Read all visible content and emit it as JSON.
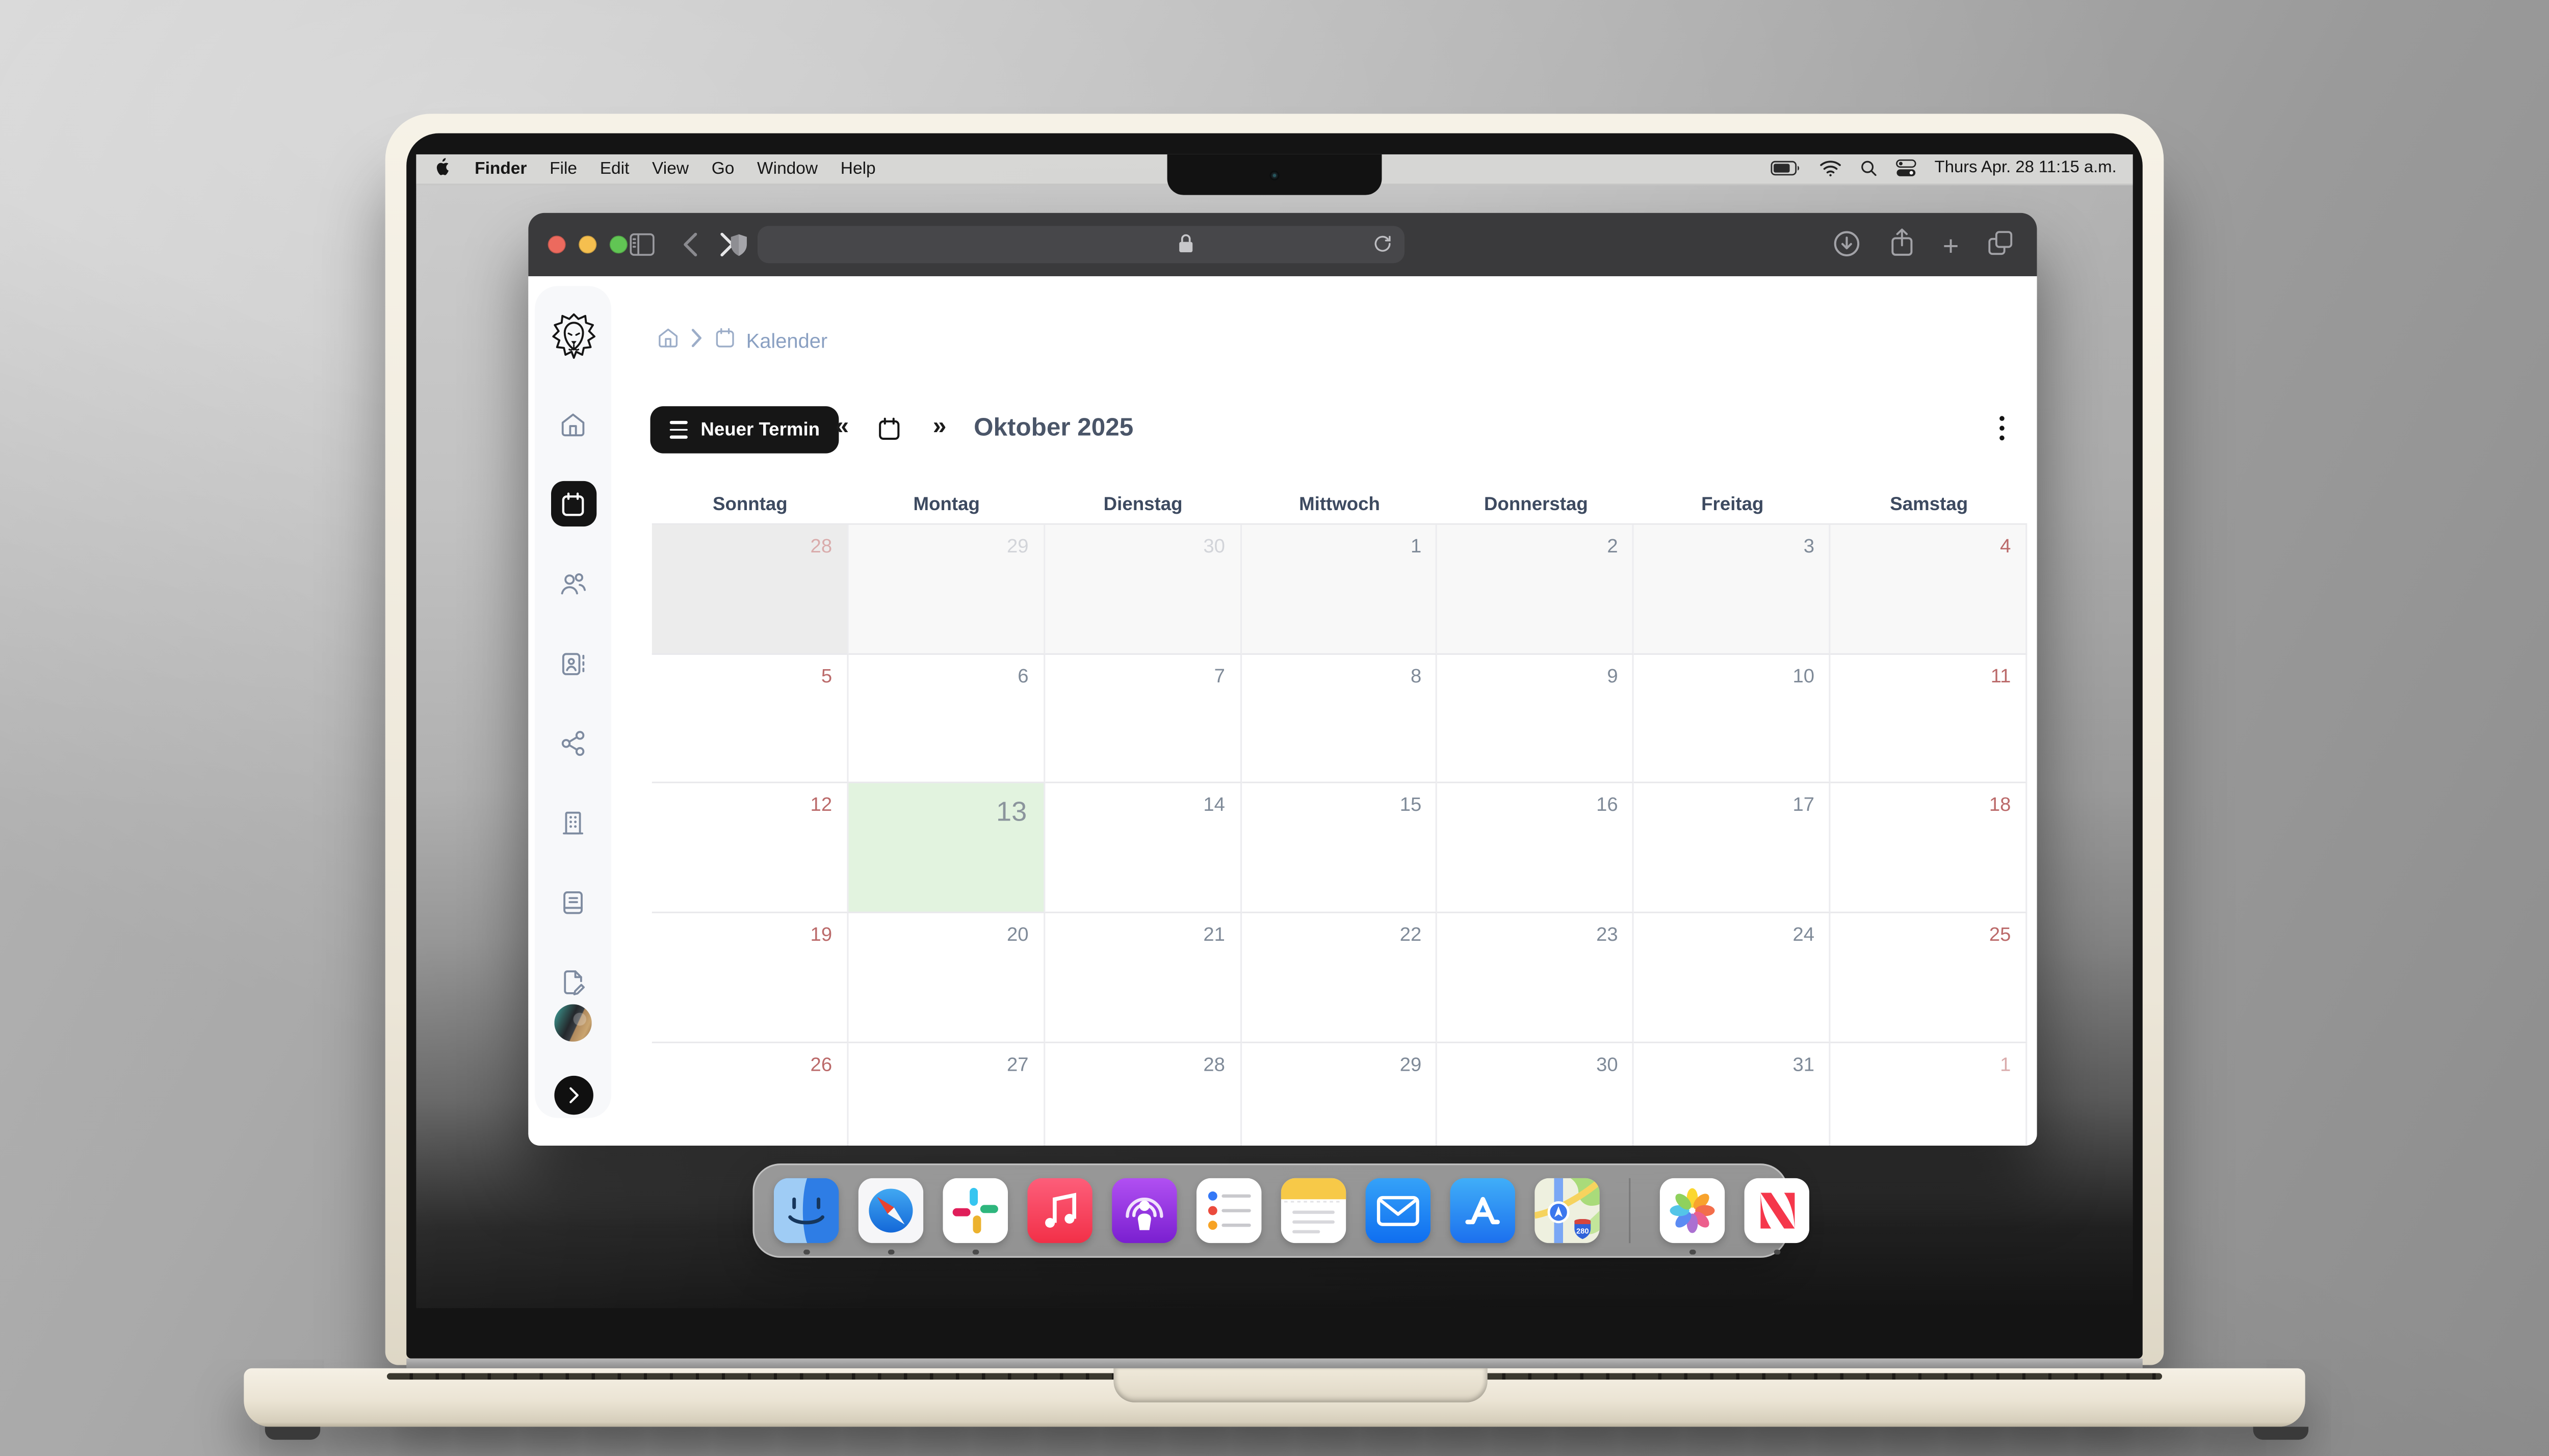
{
  "menu_bar": {
    "apple_icon": "apple-logo",
    "items": [
      {
        "label": "Finder",
        "bold": true
      },
      {
        "label": "File"
      },
      {
        "label": "Edit"
      },
      {
        "label": "View"
      },
      {
        "label": "Go"
      },
      {
        "label": "Window"
      },
      {
        "label": "Help"
      }
    ],
    "status_icons": [
      "battery-icon",
      "wifi-icon",
      "search-icon",
      "control-center-icon"
    ],
    "clock": "Thurs Apr. 28 11:15 a.m."
  },
  "browser": {
    "traffic_lights": [
      "close",
      "minimize",
      "zoom"
    ],
    "toolbar_icons": [
      "sidebar-icon",
      "back-icon",
      "forward-icon",
      "shield-icon",
      "lock-icon",
      "reload-icon",
      "download-icon",
      "share-icon",
      "new-tab-icon",
      "tabs-icon"
    ]
  },
  "app": {
    "sidebar": {
      "active": "calendar",
      "icons": [
        "home",
        "calendar",
        "users",
        "contact",
        "share",
        "building",
        "book",
        "file-edit"
      ]
    },
    "breadcrumb": {
      "current": "Kalender"
    },
    "toolbar": {
      "new_event_label": "Neuer Termin",
      "prev": "«",
      "next": "»",
      "month_title": "Oktober 2025"
    },
    "calendar": {
      "weekday_headers": [
        "Sonntag",
        "Montag",
        "Dienstag",
        "Mittwoch",
        "Donnerstag",
        "Freitag",
        "Samstag"
      ],
      "weeks": [
        [
          {
            "day": 28,
            "muted": true,
            "weekend": true,
            "shaded": true
          },
          {
            "day": 29,
            "muted": true
          },
          {
            "day": 30,
            "muted": true
          },
          {
            "day": 1
          },
          {
            "day": 2
          },
          {
            "day": 3
          },
          {
            "day": 4,
            "weekend": true
          }
        ],
        [
          {
            "day": 5,
            "weekend": true
          },
          {
            "day": 6
          },
          {
            "day": 7
          },
          {
            "day": 8
          },
          {
            "day": 9
          },
          {
            "day": 10
          },
          {
            "day": 11,
            "weekend": true
          }
        ],
        [
          {
            "day": 12,
            "weekend": true
          },
          {
            "day": 13,
            "today": true
          },
          {
            "day": 14
          },
          {
            "day": 15
          },
          {
            "day": 16
          },
          {
            "day": 17
          },
          {
            "day": 18,
            "weekend": true
          }
        ],
        [
          {
            "day": 19,
            "weekend": true
          },
          {
            "day": 20
          },
          {
            "day": 21
          },
          {
            "day": 22
          },
          {
            "day": 23
          },
          {
            "day": 24
          },
          {
            "day": 25,
            "weekend": true
          }
        ],
        [
          {
            "day": 26,
            "weekend": true
          },
          {
            "day": 27
          },
          {
            "day": 28
          },
          {
            "day": 29
          },
          {
            "day": 30
          },
          {
            "day": 31
          },
          {
            "day": 1,
            "muted": true,
            "weekend": true
          }
        ]
      ]
    }
  },
  "dock": {
    "apps": [
      {
        "id": "finder",
        "running": true
      },
      {
        "id": "safari",
        "running": true
      },
      {
        "id": "slack",
        "running": true
      },
      {
        "id": "music",
        "running": false
      },
      {
        "id": "podcasts",
        "running": false
      },
      {
        "id": "reminders",
        "running": false
      },
      {
        "id": "notes",
        "running": false
      },
      {
        "id": "mail",
        "running": false
      },
      {
        "id": "appstore",
        "running": false
      },
      {
        "id": "maps",
        "running": false
      },
      {
        "id": "photos",
        "running": true
      },
      {
        "id": "news",
        "running": true
      }
    ]
  },
  "colors": {
    "today_cell_green": "#e2f3df",
    "weekend_number_red": "#bb6a6a",
    "accent_black": "#161616",
    "browser_chrome": "#3a3a3c"
  }
}
